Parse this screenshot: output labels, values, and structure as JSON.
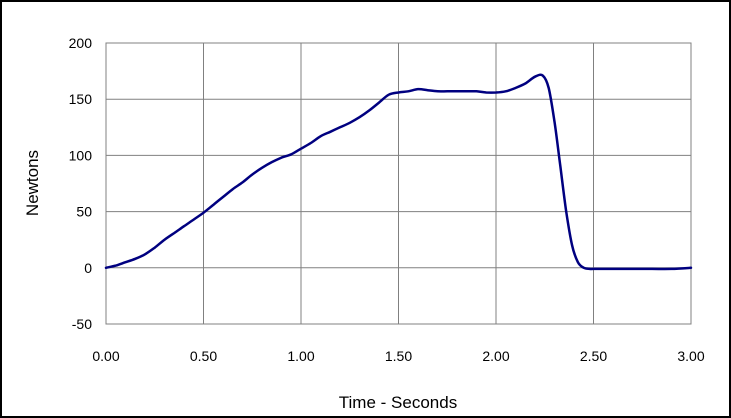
{
  "chart_data": {
    "type": "line",
    "title": "",
    "xlabel": "Time - Seconds",
    "ylabel": "Newtons",
    "xlim": [
      0,
      3
    ],
    "ylim": [
      -50,
      200
    ],
    "x_ticks": [
      0,
      0.5,
      1,
      1.5,
      2,
      2.5,
      3
    ],
    "x_tick_labels": [
      "0.00",
      "0.50",
      "1.00",
      "1.50",
      "2.00",
      "2.50",
      "3.00"
    ],
    "y_ticks": [
      -50,
      0,
      50,
      100,
      150,
      200
    ],
    "y_tick_labels": [
      "-50",
      "0",
      "50",
      "100",
      "150",
      "200"
    ],
    "grid": true,
    "legend": "none",
    "series": [
      {
        "color": "#000080",
        "x": [
          0.0,
          0.05,
          0.1,
          0.15,
          0.2,
          0.25,
          0.3,
          0.35,
          0.4,
          0.45,
          0.5,
          0.55,
          0.6,
          0.65,
          0.7,
          0.75,
          0.8,
          0.85,
          0.9,
          0.95,
          1.0,
          1.05,
          1.1,
          1.15,
          1.2,
          1.25,
          1.3,
          1.35,
          1.4,
          1.45,
          1.5,
          1.55,
          1.6,
          1.65,
          1.7,
          1.75,
          1.8,
          1.85,
          1.9,
          1.95,
          2.0,
          2.05,
          2.1,
          2.15,
          2.2,
          2.24,
          2.27,
          2.3,
          2.33,
          2.36,
          2.39,
          2.42,
          2.45,
          2.48,
          2.5,
          2.55,
          2.6,
          2.7,
          2.8,
          2.9,
          3.0
        ],
        "y": [
          0,
          2,
          5,
          8,
          12,
          18,
          25,
          31,
          37,
          43,
          49,
          56,
          63,
          70,
          76,
          83,
          89,
          94,
          98,
          101,
          106,
          111,
          117,
          121,
          125,
          129,
          134,
          140,
          147,
          154,
          156,
          157,
          159,
          158,
          157,
          157,
          157,
          157,
          157,
          156,
          156,
          157,
          160,
          164,
          170,
          171,
          160,
          130,
          90,
          50,
          20,
          5,
          0,
          -1,
          -1,
          -1,
          -1,
          -1,
          -1,
          -1,
          0
        ]
      }
    ]
  }
}
